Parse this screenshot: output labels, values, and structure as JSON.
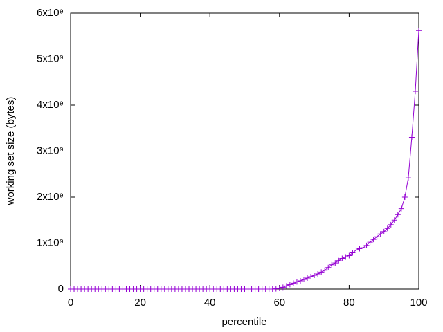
{
  "chart_data": {
    "type": "line",
    "xlabel": "percentile",
    "ylabel": "working set size (bytes)",
    "x": [
      0,
      1,
      2,
      3,
      4,
      5,
      6,
      7,
      8,
      9,
      10,
      11,
      12,
      13,
      14,
      15,
      16,
      17,
      18,
      19,
      20,
      21,
      22,
      23,
      24,
      25,
      26,
      27,
      28,
      29,
      30,
      31,
      32,
      33,
      34,
      35,
      36,
      37,
      38,
      39,
      40,
      41,
      42,
      43,
      44,
      45,
      46,
      47,
      48,
      49,
      50,
      51,
      52,
      53,
      54,
      55,
      56,
      57,
      58,
      59,
      60,
      61,
      62,
      63,
      64,
      65,
      66,
      67,
      68,
      69,
      70,
      71,
      72,
      73,
      74,
      75,
      76,
      77,
      78,
      79,
      80,
      81,
      82,
      83,
      84,
      85,
      86,
      87,
      88,
      89,
      90,
      91,
      92,
      93,
      94,
      95,
      96,
      97,
      98,
      99,
      100
    ],
    "series": [
      {
        "color": "#9400d3",
        "values": [
          0,
          0,
          0,
          0,
          0,
          0,
          0,
          0,
          0,
          0,
          0,
          0,
          0,
          0,
          0,
          0,
          0,
          0,
          0,
          0,
          0,
          0,
          0,
          0,
          0,
          0,
          0,
          0,
          0,
          0,
          0,
          0,
          0,
          0,
          0,
          0,
          0,
          0,
          0,
          0,
          0,
          0,
          0,
          0,
          0,
          0,
          0,
          0,
          0,
          0,
          0,
          0,
          0,
          0,
          0,
          0,
          0,
          0,
          0,
          5000000,
          20000000,
          40000000,
          70000000,
          100000000,
          130000000,
          160000000,
          180000000,
          210000000,
          240000000,
          270000000,
          300000000,
          330000000,
          370000000,
          410000000,
          470000000,
          530000000,
          570000000,
          620000000,
          670000000,
          700000000,
          730000000,
          790000000,
          850000000,
          880000000,
          900000000,
          950000000,
          1020000000,
          1080000000,
          1140000000,
          1200000000,
          1250000000,
          1320000000,
          1400000000,
          1500000000,
          1620000000,
          1750000000,
          2000000000,
          2420000000,
          3300000000,
          4300000000,
          5620000000
        ]
      }
    ],
    "xlim": [
      0,
      100
    ],
    "xticks": [
      0,
      20,
      40,
      60,
      80,
      100
    ],
    "ylim": [
      0,
      6000000000
    ],
    "yticks": [
      0,
      {
        "value": 1000000000,
        "label": "1x10⁹"
      },
      {
        "value": 2000000000,
        "label": "2x10⁹"
      },
      {
        "value": 3000000000,
        "label": "3x10⁹"
      },
      {
        "value": 4000000000,
        "label": "4x10⁹"
      },
      {
        "value": 5000000000,
        "label": "5x10⁹"
      },
      {
        "value": 6000000000,
        "label": "6x10⁹"
      }
    ],
    "grid": false
  }
}
